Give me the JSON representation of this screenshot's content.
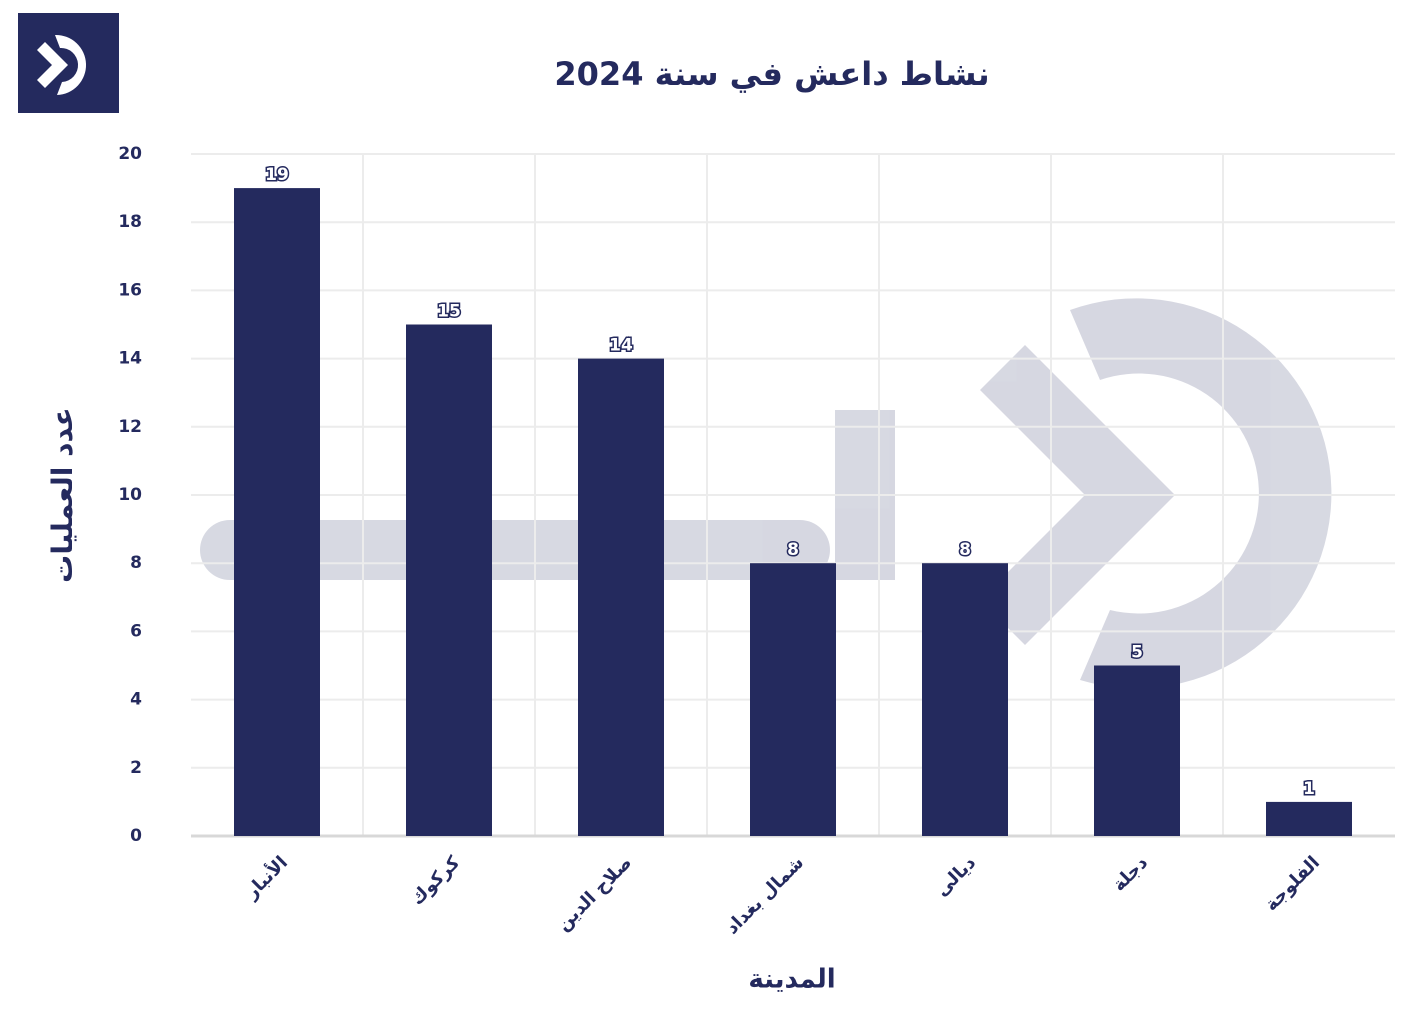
{
  "chart_data": {
    "type": "bar",
    "title": "نشاط داعش في سنة 2024",
    "x_label": "المدينة",
    "y_label": "عدد العمليات",
    "categories": [
      "الأنبار",
      "كركوك",
      "صلاح الدين",
      "شمال بغداد",
      "ديالى",
      "دجلة",
      "الفلوجة"
    ],
    "values": [
      19,
      15,
      14,
      8,
      8,
      5,
      1
    ],
    "color": "#242a5e",
    "ylim": [
      0,
      20
    ],
    "yticks": [
      0,
      2,
      4,
      6,
      8,
      10,
      12,
      14,
      16,
      18,
      20
    ],
    "grid": true
  }
}
